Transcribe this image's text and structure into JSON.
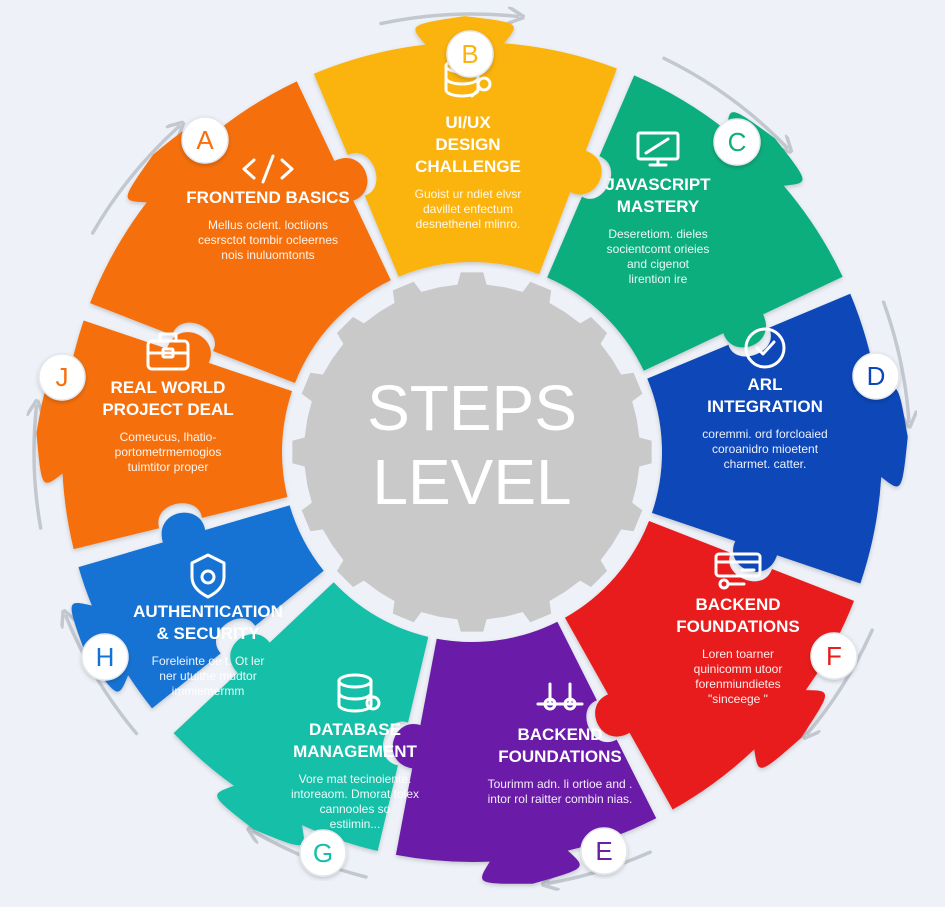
{
  "center": {
    "line1": "STEPS",
    "line2": "LEVEL"
  },
  "colors": {
    "background": "#eef2f8",
    "center_gear": "#c9c9c9",
    "arrows": "#c3c8d0"
  },
  "steps": [
    {
      "letter": "A",
      "color": "#f5700f",
      "icon": "code-brackets-icon",
      "title": [
        "FRONTEND BASICS"
      ],
      "desc": [
        "Mellus oclent. loctiions",
        "cesrsctot tombir ocleernes",
        "nois inuluomtonts"
      ]
    },
    {
      "letter": "B",
      "color": "#fbb310",
      "icon": "database-key-icon",
      "title": [
        "UI/UX",
        "DESIGN",
        "CHALLENGE"
      ],
      "desc": [
        "Guoist ur ndiet elvsr",
        "davillet enfectum",
        "desnethenel mlinro."
      ]
    },
    {
      "letter": "C",
      "color": "#0fae7e",
      "icon": "monitor-icon",
      "title": [
        "JAVASCRIPT",
        "MASTERY"
      ],
      "desc": [
        "Deseretiom. dieles",
        "socientcomt orieies",
        "and cigenot",
        "lirention ire"
      ]
    },
    {
      "letter": "D",
      "color": "#0d47b8",
      "icon": "check-circle-icon",
      "title": [
        "ARL",
        "INTEGRATION"
      ],
      "desc": [
        "coremmi. ord forcloaied",
        "coroanidro mioetent",
        "charmet. catter."
      ]
    },
    {
      "letter": "F",
      "color": "#e81d1d",
      "icon": "server-card-icon",
      "title": [
        "BACKEND",
        "FOUNDATIONS"
      ],
      "desc": [
        "Loren toarner",
        "quinicomm utoor",
        "forenmiundietes",
        "\"sinceege \""
      ]
    },
    {
      "letter": "E",
      "color": "#6a1fa8",
      "icon": "nodes-icon",
      "title": [
        "BACKEND",
        "FOUNDATIONS"
      ],
      "desc": [
        "Tourimm adn. li ortioe and .",
        "intor rol raitter combin nias."
      ]
    },
    {
      "letter": "G",
      "color": "#17bfa8",
      "icon": "database-icon",
      "title": [
        "DATABASE",
        "MANAGEMENT"
      ],
      "desc": [
        "Vore mat tecinoiente.",
        "intoreaom. Dmorat tolex",
        "cannooles so",
        "estiimin..."
      ]
    },
    {
      "letter": "H",
      "color": "#1273d4",
      "icon": "lock-shield-icon",
      "title": [
        "AUTHENTICATION",
        "& SECURITY"
      ],
      "desc": [
        "Foreleinte oe t. Ot ler",
        "ner utuithe mudtor",
        "immiemermm"
      ]
    },
    {
      "letter": "J",
      "color": "#f5700f",
      "icon": "briefcase-icon",
      "title": [
        "REAL WORLD",
        "PROJECT DEAL"
      ],
      "desc": [
        "Comeucus, lhatio-",
        "portometrmemogios",
        "tuimtitor proper"
      ]
    }
  ]
}
